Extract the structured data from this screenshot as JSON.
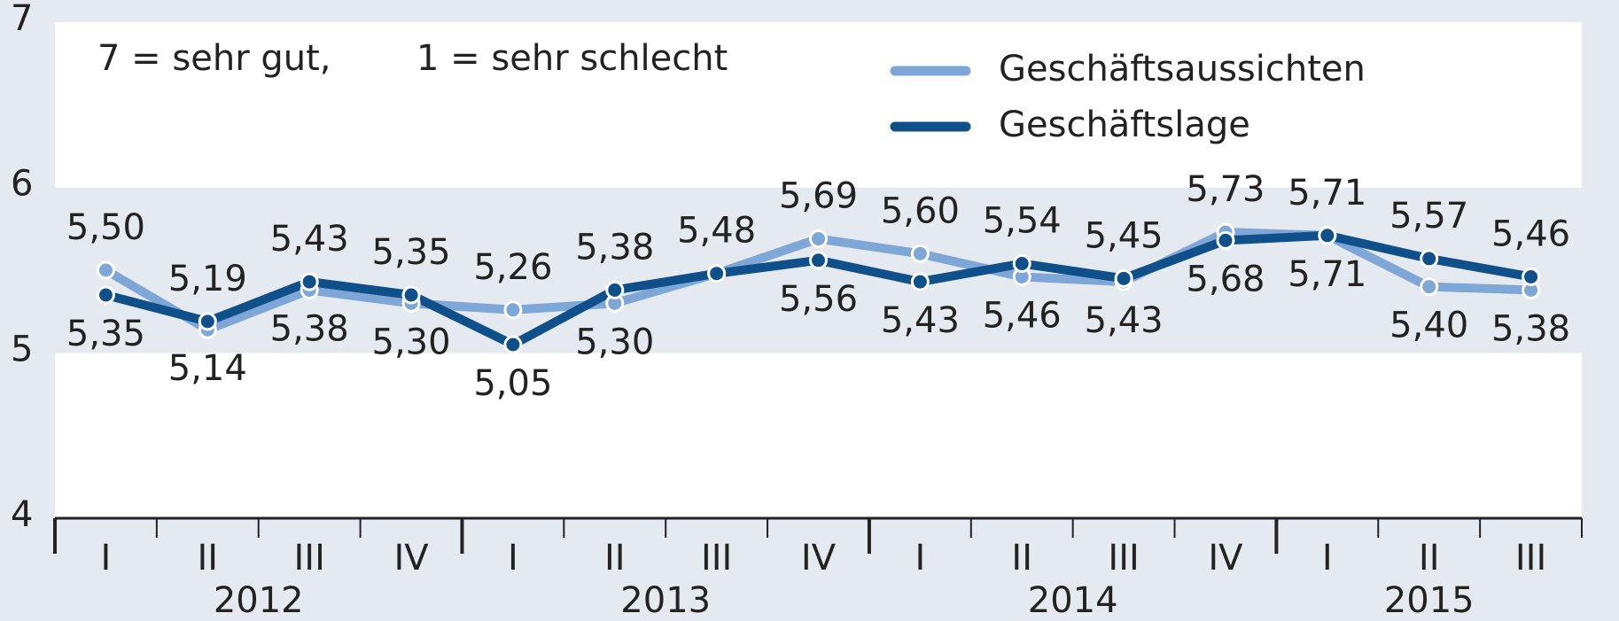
{
  "chart_data": {
    "type": "line",
    "annotations": [
      "7 = sehr gut,",
      "1 = sehr schlecht"
    ],
    "categories": [
      "I",
      "II",
      "III",
      "IV",
      "I",
      "II",
      "III",
      "IV",
      "I",
      "II",
      "III",
      "IV",
      "I",
      "II",
      "III"
    ],
    "years": [
      "2012",
      "2013",
      "2014",
      "2015"
    ],
    "series": [
      {
        "name": "Geschäftsaussichten",
        "color": "#7ea6d6",
        "values": [
          5.5,
          5.14,
          5.38,
          5.3,
          5.26,
          5.3,
          5.48,
          5.69,
          5.6,
          5.46,
          5.43,
          5.73,
          5.71,
          5.4,
          5.38
        ],
        "value_labels": [
          "5,50",
          "5,14",
          "5,38",
          "5,30",
          "5,26",
          "5,30",
          "5,48",
          "5,69",
          "5,60",
          "5,46",
          "5,43",
          "5,73",
          "5,71",
          "5,40",
          "5,38"
        ]
      },
      {
        "name": "Geschäftslage",
        "color": "#10508a",
        "values": [
          5.35,
          5.19,
          5.43,
          5.35,
          5.05,
          5.38,
          5.48,
          5.56,
          5.43,
          5.54,
          5.45,
          5.68,
          5.71,
          5.57,
          5.46
        ],
        "value_labels": [
          "5,35",
          "5,19",
          "5,43",
          "5,35",
          "5,05",
          "5,38",
          null,
          "5,56",
          "5,43",
          "5,54",
          "5,45",
          "5,68",
          "5,71",
          "5,57",
          "5,46"
        ]
      }
    ],
    "ylim": [
      4,
      7
    ],
    "yticks": [
      4,
      5,
      6,
      7
    ]
  }
}
